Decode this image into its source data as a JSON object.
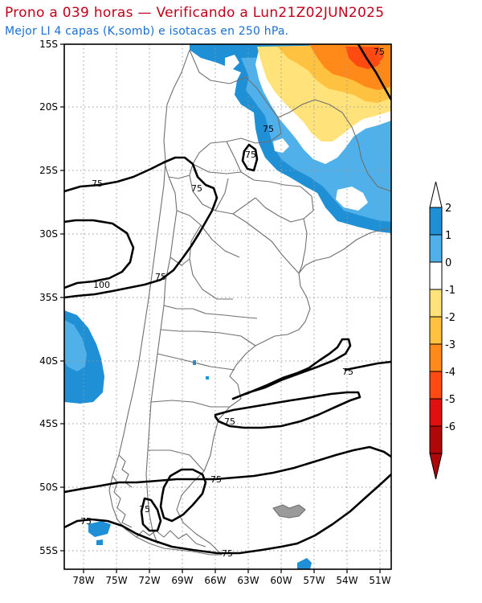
{
  "title": "Prono a 039 horas — Verificando a Lun21Z02JUN2025",
  "subtitle": "Mejor LI 4 capas (K,somb) e isotacas en 250 hPa.",
  "lat_ticks": [
    "15S",
    "20S",
    "25S",
    "30S",
    "35S",
    "40S",
    "45S",
    "50S",
    "55S"
  ],
  "lon_ticks": [
    "78W",
    "75W",
    "72W",
    "69W",
    "66W",
    "63W",
    "60W",
    "57W",
    "54W",
    "51W"
  ],
  "colorbar": {
    "labels": [
      "2",
      "1",
      "0",
      "-1",
      "-2",
      "-3",
      "-4",
      "-5",
      "-6"
    ],
    "colors": [
      "#1f8fd6",
      "#4fb0ea",
      "#ffffff",
      "#ffe37a",
      "#ffc140",
      "#ff8a1a",
      "#ff4a12",
      "#e01010",
      "#b00808"
    ]
  },
  "shading_colors": {
    "li_2": "#1f8fd6",
    "li_1": "#4fb0ea",
    "li_m1": "#ffe37a",
    "li_m2": "#ffc140",
    "li_m3": "#ff8a1a",
    "li_m4": "#ff4a12"
  },
  "contour_labels": [
    "75",
    "75",
    "75",
    "75",
    "75",
    "100",
    "75",
    "75",
    "75",
    "75",
    "75",
    "75",
    "75"
  ]
}
